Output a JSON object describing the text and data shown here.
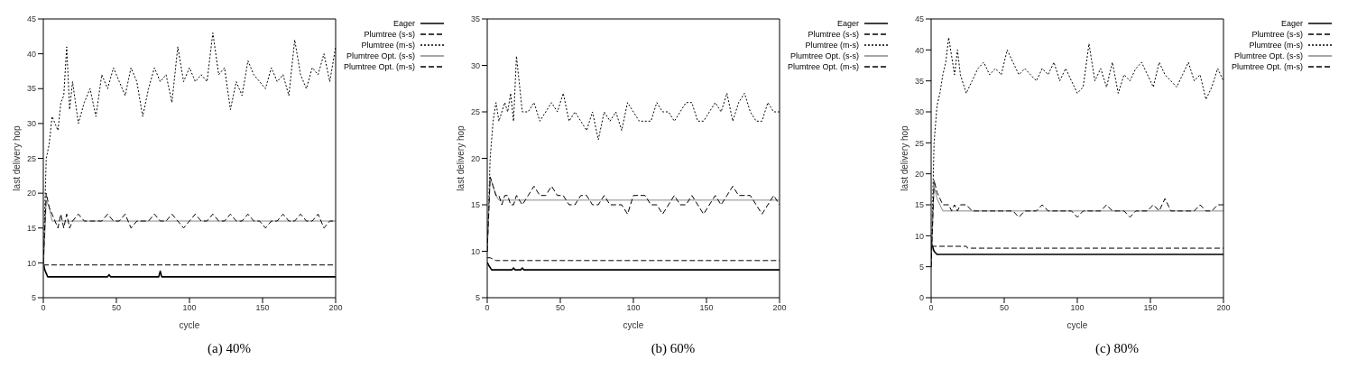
{
  "chart_data": [
    {
      "type": "line",
      "title": "(a) 40%",
      "xlabel": "cycle",
      "ylabel": "last delivery hop",
      "xlim": [
        0,
        200
      ],
      "xticks": [
        0,
        50,
        100,
        150,
        200
      ],
      "ylim": [
        5,
        45
      ],
      "yticks": [
        5,
        10,
        15,
        20,
        25,
        30,
        35,
        40,
        45
      ],
      "legend": "right",
      "series": [
        {
          "name": "Eager",
          "color": "#000000",
          "line_style": "solid",
          "x": [
            0,
            1,
            3,
            44,
            45,
            46,
            79,
            80,
            81,
            200
          ],
          "values": [
            10,
            9,
            8,
            8,
            8.3,
            8,
            8,
            8.8,
            8,
            8
          ]
        },
        {
          "name": "Plumtree (s-s)",
          "color": "#000000",
          "line_style": "dashed",
          "x": [
            0,
            1,
            200
          ],
          "values": [
            9.7,
            9.7,
            9.7
          ]
        },
        {
          "name": "Plumtree (m-s)",
          "color": "#000000",
          "line_style": "dotted",
          "x": [
            0,
            2,
            4,
            6,
            8,
            10,
            12,
            14,
            16,
            18,
            20,
            24,
            28,
            32,
            36,
            40,
            44,
            48,
            52,
            56,
            60,
            64,
            68,
            72,
            76,
            80,
            84,
            88,
            92,
            96,
            100,
            104,
            108,
            112,
            116,
            120,
            124,
            128,
            132,
            136,
            140,
            144,
            148,
            152,
            156,
            160,
            164,
            168,
            172,
            176,
            180,
            184,
            188,
            192,
            196,
            200
          ],
          "values": [
            10,
            25,
            27,
            31,
            30,
            29,
            33,
            34,
            41,
            32,
            36,
            30,
            33,
            35,
            31,
            37,
            35,
            38,
            36,
            34,
            38,
            36,
            31,
            35,
            38,
            36,
            37,
            33,
            41,
            36,
            38,
            36,
            37,
            36,
            43,
            37,
            38,
            32,
            36,
            34,
            39,
            37,
            36,
            35,
            38,
            36,
            37,
            34,
            42,
            37,
            35,
            38,
            37,
            40,
            36,
            41
          ]
        },
        {
          "name": "Plumtree Opt. (s-s)",
          "color": "#888888",
          "line_style": "solid",
          "x": [
            0,
            2,
            4,
            6,
            8,
            200
          ],
          "values": [
            9,
            19,
            18,
            16,
            16,
            16
          ]
        },
        {
          "name": "Plumtree Opt. (m-s)",
          "color": "#000000",
          "line_style": "dashed",
          "x": [
            0,
            2,
            4,
            6,
            8,
            10,
            12,
            14,
            16,
            18,
            20,
            24,
            28,
            32,
            36,
            40,
            44,
            48,
            52,
            56,
            60,
            64,
            68,
            72,
            76,
            80,
            84,
            88,
            92,
            96,
            100,
            104,
            108,
            112,
            116,
            120,
            124,
            128,
            132,
            136,
            140,
            144,
            148,
            152,
            156,
            160,
            164,
            168,
            172,
            176,
            180,
            184,
            188,
            192,
            196,
            200
          ],
          "values": [
            10,
            20,
            18,
            17,
            16,
            15,
            17,
            15,
            17,
            15,
            16,
            17,
            16,
            16,
            16,
            16,
            17,
            16,
            16,
            17,
            15,
            16,
            16,
            16,
            17,
            16,
            16,
            17,
            16,
            15,
            16,
            17,
            16,
            16,
            17,
            16,
            16,
            17,
            16,
            16,
            17,
            16,
            16,
            15,
            16,
            16,
            17,
            16,
            16,
            17,
            16,
            16,
            17,
            15,
            16,
            16
          ]
        }
      ]
    },
    {
      "type": "line",
      "title": "(b) 60%",
      "xlabel": "cycle",
      "ylabel": "last delivery hop",
      "xlim": [
        0,
        200
      ],
      "xticks": [
        0,
        50,
        100,
        150,
        200
      ],
      "ylim": [
        5,
        35
      ],
      "yticks": [
        5,
        10,
        15,
        20,
        25,
        30,
        35
      ],
      "legend": "right",
      "series": [
        {
          "name": "Eager",
          "color": "#000000",
          "line_style": "solid",
          "x": [
            0,
            1,
            3,
            17,
            18,
            19,
            23,
            24,
            25,
            200
          ],
          "values": [
            8.8,
            8.5,
            8,
            8,
            8.2,
            8,
            8,
            8.2,
            8,
            8
          ]
        },
        {
          "name": "Plumtree (s-s)",
          "color": "#000000",
          "line_style": "dashed",
          "x": [
            0,
            2,
            6,
            200
          ],
          "values": [
            9.3,
            9.3,
            9,
            9
          ]
        },
        {
          "name": "Plumtree (m-s)",
          "color": "#000000",
          "line_style": "dotted",
          "x": [
            0,
            2,
            4,
            6,
            8,
            10,
            12,
            14,
            16,
            18,
            20,
            24,
            28,
            32,
            36,
            40,
            44,
            48,
            52,
            56,
            60,
            64,
            68,
            72,
            76,
            80,
            84,
            88,
            92,
            96,
            100,
            104,
            108,
            112,
            116,
            120,
            124,
            128,
            132,
            136,
            140,
            144,
            148,
            152,
            156,
            160,
            164,
            168,
            172,
            176,
            180,
            184,
            188,
            192,
            196,
            200
          ],
          "values": [
            10,
            20,
            24,
            26,
            24,
            25,
            26,
            25,
            27,
            24,
            31,
            25,
            25,
            26,
            24,
            25,
            26,
            25,
            27,
            24,
            25,
            24,
            23,
            25,
            22,
            25,
            24,
            25,
            23,
            26,
            25,
            24,
            24,
            24,
            26,
            25,
            25,
            24,
            25,
            26,
            26,
            24,
            24,
            25,
            26,
            25,
            27,
            24,
            26,
            27,
            25,
            24,
            24,
            26,
            25,
            25
          ]
        },
        {
          "name": "Plumtree Opt. (s-s)",
          "color": "#888888",
          "line_style": "solid",
          "x": [
            0,
            2,
            4,
            6,
            8,
            200
          ],
          "values": [
            10,
            18,
            17,
            16,
            15.5,
            15.5
          ]
        },
        {
          "name": "Plumtree Opt. (m-s)",
          "color": "#000000",
          "line_style": "dashed",
          "x": [
            0,
            2,
            4,
            6,
            8,
            10,
            12,
            14,
            16,
            18,
            20,
            24,
            28,
            32,
            36,
            40,
            44,
            48,
            52,
            56,
            60,
            64,
            68,
            72,
            76,
            80,
            84,
            88,
            92,
            96,
            100,
            104,
            108,
            112,
            116,
            120,
            124,
            128,
            132,
            136,
            140,
            144,
            148,
            152,
            156,
            160,
            164,
            168,
            172,
            176,
            180,
            184,
            188,
            192,
            196,
            200
          ],
          "values": [
            10,
            18,
            17,
            16,
            16,
            15,
            16,
            16,
            15,
            15,
            16,
            15,
            16,
            17,
            16,
            16,
            17,
            16,
            16,
            15,
            15,
            16,
            16,
            15,
            15,
            16,
            15,
            15,
            15,
            14,
            16,
            16,
            16,
            15,
            15,
            14,
            15,
            16,
            15,
            15,
            16,
            15,
            14,
            15,
            16,
            15,
            16,
            17,
            16,
            16,
            16,
            15,
            14,
            15,
            16,
            15
          ]
        }
      ]
    },
    {
      "type": "line",
      "title": "(c) 80%",
      "xlabel": "cycle",
      "ylabel": "last delivery hop",
      "xlim": [
        0,
        200
      ],
      "xticks": [
        0,
        50,
        100,
        150,
        200
      ],
      "ylim": [
        0,
        45
      ],
      "yticks": [
        0,
        5,
        10,
        15,
        20,
        25,
        30,
        35,
        40,
        45
      ],
      "legend": "right",
      "series": [
        {
          "name": "Eager",
          "color": "#000000",
          "line_style": "solid",
          "x": [
            0,
            2,
            4,
            200
          ],
          "values": [
            9,
            7.5,
            7,
            7
          ]
        },
        {
          "name": "Plumtree (s-s)",
          "color": "#000000",
          "line_style": "dashed",
          "x": [
            0,
            2,
            24,
            25,
            200
          ],
          "values": [
            8.3,
            8.3,
            8.3,
            8,
            8
          ]
        },
        {
          "name": "Plumtree (m-s)",
          "color": "#000000",
          "line_style": "dotted",
          "x": [
            0,
            2,
            4,
            6,
            8,
            10,
            12,
            14,
            16,
            18,
            20,
            24,
            28,
            32,
            36,
            40,
            44,
            48,
            52,
            56,
            60,
            64,
            68,
            72,
            76,
            80,
            84,
            88,
            92,
            96,
            100,
            104,
            108,
            112,
            116,
            120,
            124,
            128,
            132,
            136,
            140,
            144,
            148,
            152,
            156,
            160,
            164,
            168,
            172,
            176,
            180,
            184,
            188,
            192,
            196,
            200
          ],
          "values": [
            5,
            25,
            31,
            33,
            36,
            38,
            42,
            39,
            36,
            40,
            36,
            33,
            35,
            37,
            38,
            36,
            37,
            36,
            40,
            38,
            36,
            37,
            36,
            35,
            37,
            36,
            38,
            35,
            37,
            35,
            33,
            34,
            41,
            35,
            37,
            34,
            38,
            33,
            36,
            35,
            37,
            38,
            36,
            34,
            38,
            36,
            35,
            34,
            36,
            38,
            35,
            36,
            32,
            34,
            37,
            35
          ]
        },
        {
          "name": "Plumtree Opt. (s-s)",
          "color": "#888888",
          "line_style": "solid",
          "x": [
            0,
            2,
            4,
            6,
            8,
            200
          ],
          "values": [
            5,
            18,
            16,
            15,
            14,
            14
          ]
        },
        {
          "name": "Plumtree Opt. (m-s)",
          "color": "#000000",
          "line_style": "dashed",
          "x": [
            0,
            2,
            4,
            6,
            8,
            10,
            12,
            14,
            16,
            18,
            20,
            24,
            28,
            32,
            36,
            40,
            44,
            48,
            52,
            56,
            60,
            64,
            68,
            72,
            76,
            80,
            84,
            88,
            92,
            96,
            100,
            104,
            108,
            112,
            116,
            120,
            124,
            128,
            132,
            136,
            140,
            144,
            148,
            152,
            156,
            160,
            164,
            168,
            172,
            176,
            180,
            184,
            188,
            192,
            196,
            200
          ],
          "values": [
            5,
            19,
            17,
            16,
            15,
            15,
            15,
            14,
            15,
            14,
            15,
            15,
            14,
            14,
            14,
            14,
            14,
            14,
            14,
            14,
            13,
            14,
            14,
            14,
            15,
            14,
            14,
            14,
            14,
            14,
            13,
            14,
            14,
            14,
            14,
            15,
            14,
            14,
            14,
            13,
            14,
            14,
            14,
            15,
            14,
            16,
            14,
            14,
            14,
            14,
            14,
            15,
            14,
            14,
            15,
            15
          ]
        }
      ]
    }
  ]
}
